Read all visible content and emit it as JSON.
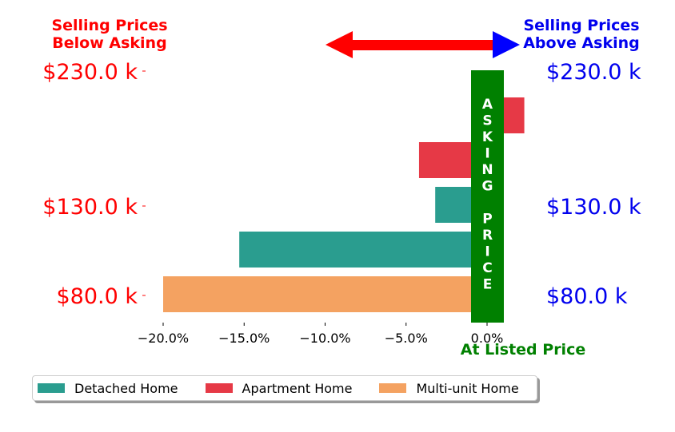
{
  "headers": {
    "left_line1": "Selling Prices",
    "left_line2": "Below Asking",
    "right_line1": "Selling Prices",
    "right_line2": "Above Asking",
    "bottom": "At Listed Price",
    "asking_price_vertical": [
      "A",
      "S",
      "K",
      "I",
      "N",
      "G",
      "",
      "P",
      "R",
      "I",
      "C",
      "E"
    ]
  },
  "colors": {
    "below": "#ff0000",
    "above": "#0000ee",
    "asking": "#008000",
    "arrow": "#ff0000",
    "arrow_right_head": "#0000ff"
  },
  "chart_data": {
    "type": "bar",
    "orientation": "horizontal",
    "xlim": [
      -22,
      3
    ],
    "xticks": [
      -20,
      -15,
      -10,
      -5,
      0
    ],
    "xtick_labels": [
      "−20.0%",
      "−15.0%",
      "−10.0%",
      "−5.0%",
      "0.0%"
    ],
    "ytick_labels_left": [
      "$230.0 k",
      "$130.0 k",
      "$80.0 k"
    ],
    "ytick_labels_right": [
      "$230.0 k",
      "$130.0 k",
      "$80.0 k"
    ],
    "bars": [
      {
        "category": "Apartment Home",
        "value": 2.3
      },
      {
        "category": "Apartment Home",
        "value": -4.2
      },
      {
        "category": "Detached Home",
        "value": -3.2
      },
      {
        "category": "Detached Home",
        "value": -15.3
      },
      {
        "category": "Multi-unit Home",
        "value": -20.0
      }
    ],
    "series": [
      {
        "name": "Detached Home",
        "color": "#2a9d8f"
      },
      {
        "name": "Apartment Home",
        "color": "#e63946"
      },
      {
        "name": "Multi-unit Home",
        "color": "#f4a261"
      }
    ]
  }
}
